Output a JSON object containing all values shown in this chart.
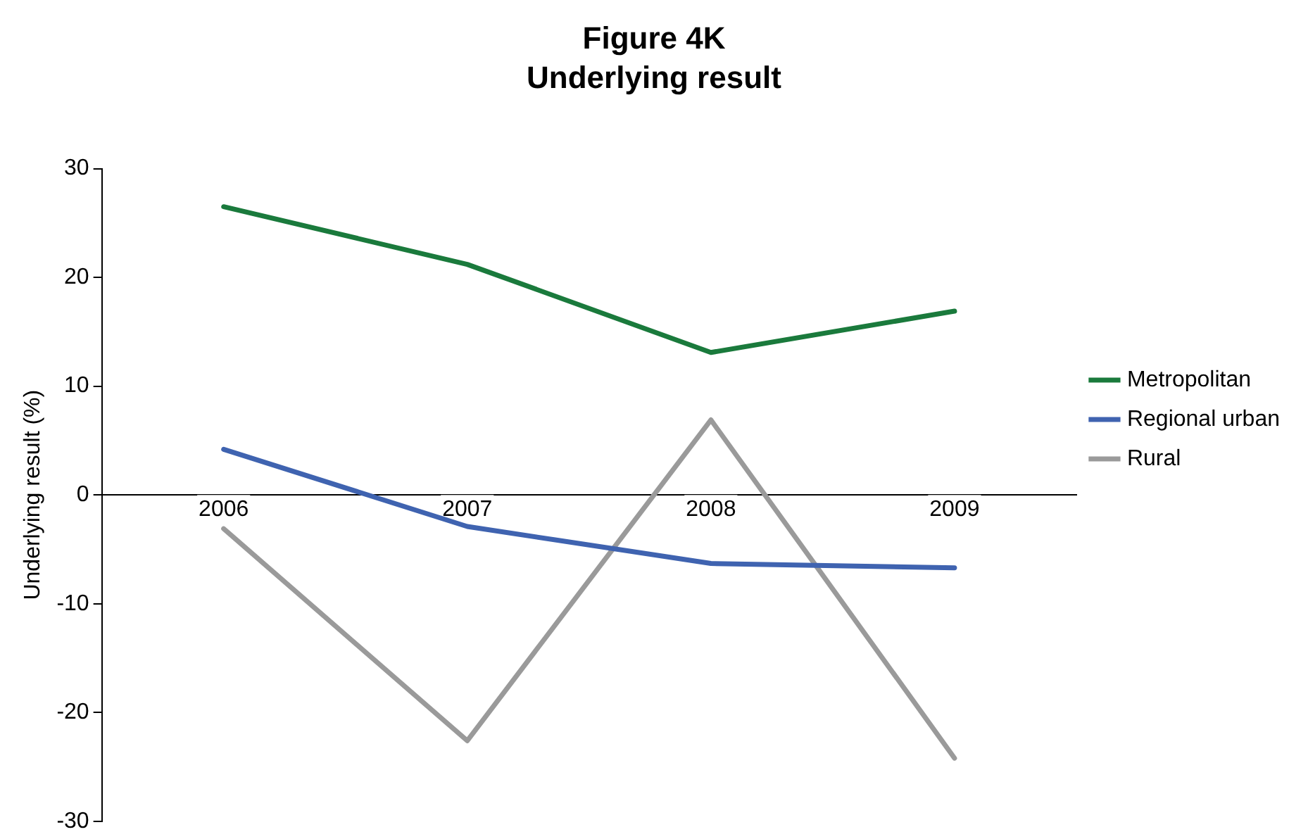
{
  "chart_data": {
    "type": "line",
    "title": "Figure 4K",
    "subtitle": "Underlying result",
    "ylabel": "Underlying result (%)",
    "categories": [
      "2006",
      "2007",
      "2008",
      "2009"
    ],
    "series": [
      {
        "name": "Metropolitan",
        "color": "#1a7a3c",
        "values": [
          26.5,
          21.2,
          13.1,
          16.9
        ]
      },
      {
        "name": "Regional urban",
        "color": "#3f63b0",
        "values": [
          4.2,
          -2.9,
          -6.3,
          -6.7
        ]
      },
      {
        "name": "Rural",
        "color": "#9a9a9a",
        "values": [
          -3.1,
          -22.6,
          6.9,
          -24.2
        ]
      }
    ],
    "ylim": [
      -30,
      30
    ],
    "yticks": [
      -30,
      -20,
      -10,
      0,
      10,
      20,
      30
    ],
    "grid": false,
    "legend": "right",
    "marker": "none",
    "line_style": "solid"
  }
}
